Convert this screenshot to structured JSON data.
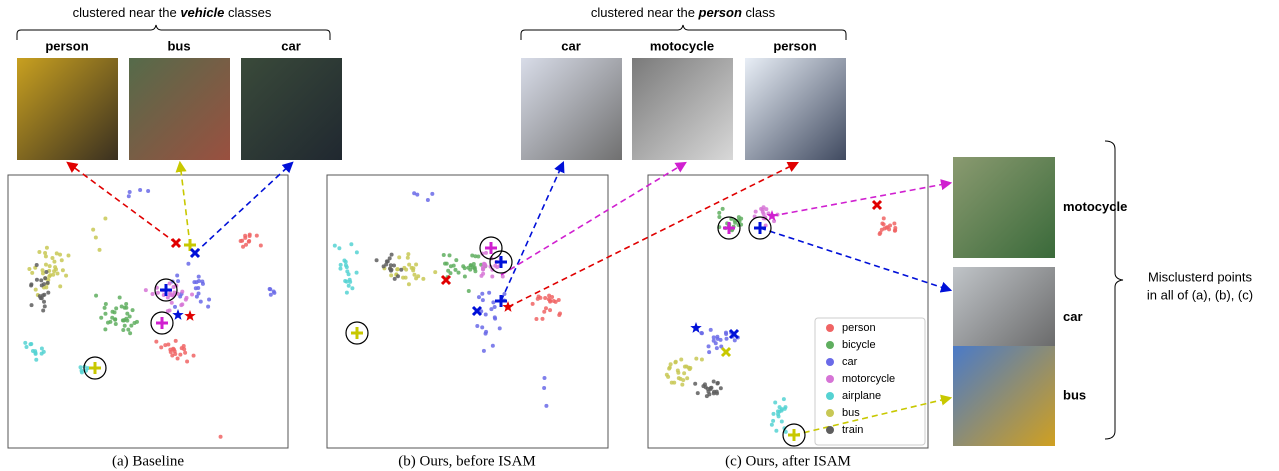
{
  "panels": [
    {
      "caption": "(a) Baseline",
      "header": {
        "prefix": "clustered near the ",
        "emphasis": "vehicle",
        "suffix": " classes"
      },
      "images": [
        "person",
        "bus",
        "car"
      ]
    },
    {
      "caption": "(b) Ours, before ISAM",
      "header": {
        "prefix": "clustered near the ",
        "emphasis": "person",
        "suffix": " class"
      },
      "images": [
        "car",
        "motocycle",
        "person"
      ]
    },
    {
      "caption": "(c) Ours, after ISAM"
    }
  ],
  "misclustered": {
    "images": [
      "motocycle",
      "car",
      "bus"
    ],
    "note": [
      "Misclusterd points",
      "in all of (a), (b), (c)"
    ]
  },
  "legend": [
    {
      "name": "person",
      "color": "#f06464"
    },
    {
      "name": "bicycle",
      "color": "#5fae5f"
    },
    {
      "name": "car",
      "color": "#6a6ae8"
    },
    {
      "name": "motorcycle",
      "color": "#d674d6"
    },
    {
      "name": "airplane",
      "color": "#55d2d2"
    },
    {
      "name": "bus",
      "color": "#c8c855"
    },
    {
      "name": "train",
      "color": "#5e5e5e"
    }
  ]
}
